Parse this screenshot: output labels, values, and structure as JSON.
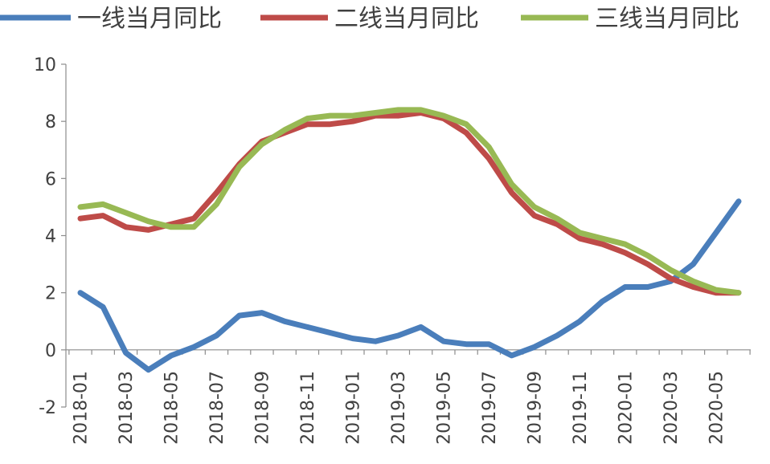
{
  "chart_data": {
    "type": "line",
    "title": "",
    "xlabel": "",
    "ylabel": "",
    "ylim": [
      -2,
      10
    ],
    "yticks": [
      -2,
      0,
      2,
      4,
      6,
      8,
      10
    ],
    "grid": false,
    "legend_position": "top",
    "x": [
      "2018-01",
      "2018-02",
      "2018-03",
      "2018-04",
      "2018-05",
      "2018-06",
      "2018-07",
      "2018-08",
      "2018-09",
      "2018-10",
      "2018-11",
      "2018-12",
      "2019-01",
      "2019-02",
      "2019-03",
      "2019-04",
      "2019-05",
      "2019-06",
      "2019-07",
      "2019-08",
      "2019-09",
      "2019-10",
      "2019-11",
      "2019-12",
      "2020-01",
      "2020-02",
      "2020-03",
      "2020-04",
      "2020-05",
      "2020-06"
    ],
    "xtick_labels": [
      "2018-01",
      "2018-03",
      "2018-05",
      "2018-07",
      "2018-09",
      "2018-11",
      "2019-01",
      "2019-03",
      "2019-05",
      "2019-07",
      "2019-09",
      "2019-11",
      "2020-01",
      "2020-03",
      "2020-05"
    ],
    "series": [
      {
        "name": "一线当月同比",
        "color": "#4A7EBB",
        "values": [
          2.0,
          1.5,
          -0.1,
          -0.7,
          -0.2,
          0.1,
          0.5,
          1.2,
          1.3,
          1.0,
          0.8,
          0.6,
          0.4,
          0.3,
          0.5,
          0.8,
          0.3,
          0.2,
          0.2,
          -0.2,
          0.1,
          0.5,
          1.0,
          1.7,
          2.2,
          2.2,
          2.4,
          3.0,
          4.1,
          5.2
        ]
      },
      {
        "name": "二线当月同比",
        "color": "#BE4B48",
        "values": [
          4.6,
          4.7,
          4.3,
          4.2,
          4.4,
          4.6,
          5.5,
          6.5,
          7.3,
          7.6,
          7.9,
          7.9,
          8.0,
          8.2,
          8.2,
          8.3,
          8.1,
          7.6,
          6.7,
          5.5,
          4.7,
          4.4,
          3.9,
          3.7,
          3.4,
          3.0,
          2.5,
          2.2,
          2.0,
          2.0
        ]
      },
      {
        "name": "三线当月同比",
        "color": "#98B954",
        "values": [
          5.0,
          5.1,
          4.8,
          4.5,
          4.3,
          4.3,
          5.1,
          6.4,
          7.2,
          7.7,
          8.1,
          8.2,
          8.2,
          8.3,
          8.4,
          8.4,
          8.2,
          7.9,
          7.1,
          5.8,
          5.0,
          4.6,
          4.1,
          3.9,
          3.7,
          3.3,
          2.8,
          2.4,
          2.1,
          2.0
        ]
      }
    ]
  }
}
